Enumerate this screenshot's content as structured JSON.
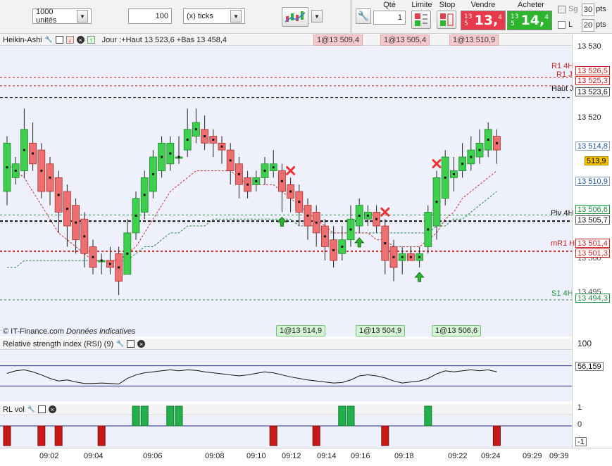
{
  "toolbar": {
    "units": "1000 unités",
    "ticks_value": "100",
    "ticks_unit": "(x) ticks",
    "qty_label": "Qté",
    "qty_value": "1",
    "limit_label": "Limite",
    "stop_label": "Stop",
    "sell_label": "Vendre",
    "buy_label": "Acheter",
    "sell_prefix": "13 5",
    "sell_big": "13,",
    "sell_sup": "4",
    "buy_prefix": "13 5",
    "buy_big": "14,",
    "buy_sup": "4",
    "sg_label": "Sg",
    "l_label": "L",
    "pts1": "30",
    "pts2": "20",
    "pts_label": "pts",
    "colors": {
      "sell": "#e8394a",
      "buy": "#2db52d"
    }
  },
  "main": {
    "title": "Heikin-Ashi",
    "info": "Jour :+Haut 13 523,6 +Bas 13 458,4",
    "top_tags": [
      "1@13 509,4",
      "1@13 505,4",
      "1@13 510,9"
    ],
    "bottom_tags": [
      "1@13 514,9",
      "1@13 504,9",
      "1@13 506,6"
    ],
    "credit": "© IT-Finance.com",
    "credit_note": "Données indicatives",
    "axis_ticks": [
      "13 530",
      "13 520",
      "13 500",
      "13 495"
    ],
    "levels": [
      {
        "name": "R1 4H",
        "price": "13 526,5",
        "color": "#cc2222"
      },
      {
        "name": "R1 J",
        "price": "13 525,3",
        "color": "#cc2222"
      },
      {
        "name": "Haut J",
        "price": "13 523,6",
        "color": "#111111"
      },
      {
        "name": "Piv 4H",
        "price": "13 506,6",
        "color": "#1f8f3f"
      },
      {
        "name": "",
        "price": "13 505,7",
        "color": "#111111"
      },
      {
        "name": "mR1 H",
        "price": "13 501,4",
        "color": "#cc2222"
      },
      {
        "name": "",
        "price": "13 501,3",
        "color": "#cc2222"
      },
      {
        "name": "S1 4H",
        "price": "13 494,3",
        "color": "#1f8f3f"
      }
    ],
    "right_prices": {
      "p1": "13 514,8",
      "p2": "513,9",
      "p3": "13 510,9"
    }
  },
  "rsi": {
    "title": "Relative strength index (RSI) (9)",
    "top": "100",
    "value": "56,159"
  },
  "rlvol": {
    "title": "RL vol",
    "ticks": [
      "1",
      "0",
      "-1"
    ]
  },
  "time_axis": [
    "09:02",
    "09:04",
    "09:06",
    "09:08",
    "09:10",
    "09:12",
    "09:14",
    "09:16",
    "09:18",
    "09:22",
    "09:24",
    "09:29",
    "09:39"
  ],
  "chart_data": {
    "type": "heikin-ashi",
    "ylim": [
      13489,
      13531
    ],
    "candles": [
      {
        "o": 13510,
        "c": 13517,
        "h": 13518,
        "l": 13508
      },
      {
        "o": 13512,
        "c": 13514,
        "h": 13515,
        "l": 13511
      },
      {
        "o": 13513,
        "c": 13519,
        "h": 13522,
        "l": 13512
      },
      {
        "o": 13517,
        "c": 13514,
        "h": 13520,
        "l": 13513
      },
      {
        "o": 13516,
        "c": 13510,
        "h": 13517,
        "l": 13509
      },
      {
        "o": 13514,
        "c": 13510,
        "h": 13515,
        "l": 13508
      },
      {
        "o": 13512,
        "c": 13507,
        "h": 13513,
        "l": 13504
      },
      {
        "o": 13510,
        "c": 13505,
        "h": 13511,
        "l": 13502
      },
      {
        "o": 13508,
        "c": 13503,
        "h": 13509,
        "l": 13501
      },
      {
        "o": 13506,
        "c": 13501,
        "h": 13507,
        "l": 13499
      },
      {
        "o": 13502,
        "c": 13499,
        "h": 13503,
        "l": 13498
      },
      {
        "o": 13500,
        "c": 13500,
        "h": 13501,
        "l": 13498
      },
      {
        "o": 13500,
        "c": 13499,
        "h": 13502,
        "l": 13498
      },
      {
        "o": 13501,
        "c": 13497,
        "h": 13502,
        "l": 13495
      },
      {
        "o": 13498,
        "c": 13504,
        "h": 13506,
        "l": 13498
      },
      {
        "o": 13504,
        "c": 13509,
        "h": 13510,
        "l": 13503
      },
      {
        "o": 13507,
        "c": 13512,
        "h": 13513,
        "l": 13506
      },
      {
        "o": 13510,
        "c": 13515,
        "h": 13516,
        "l": 13509
      },
      {
        "o": 13513,
        "c": 13517,
        "h": 13518,
        "l": 13512
      },
      {
        "o": 13514,
        "c": 13517,
        "h": 13518,
        "l": 13513
      },
      {
        "o": 13515,
        "c": 13515,
        "h": 13518,
        "l": 13514
      },
      {
        "o": 13516,
        "c": 13519,
        "h": 13522,
        "l": 13515
      },
      {
        "o": 13518,
        "c": 13520,
        "h": 13522,
        "l": 13517
      },
      {
        "o": 13519,
        "c": 13517,
        "h": 13521,
        "l": 13516
      },
      {
        "o": 13518,
        "c": 13517,
        "h": 13519,
        "l": 13515
      },
      {
        "o": 13517,
        "c": 13516,
        "h": 13518,
        "l": 13514
      },
      {
        "o": 13516,
        "c": 13513,
        "h": 13517,
        "l": 13511
      },
      {
        "o": 13514,
        "c": 13511,
        "h": 13515,
        "l": 13509
      },
      {
        "o": 13512,
        "c": 13510,
        "h": 13513,
        "l": 13509
      },
      {
        "o": 13511,
        "c": 13512,
        "h": 13513,
        "l": 13510
      },
      {
        "o": 13512,
        "c": 13514,
        "h": 13515,
        "l": 13511
      },
      {
        "o": 13513,
        "c": 13514,
        "h": 13516,
        "l": 13512
      },
      {
        "o": 13513,
        "c": 13510,
        "h": 13514,
        "l": 13507
      },
      {
        "o": 13511,
        "c": 13509,
        "h": 13512,
        "l": 13507
      },
      {
        "o": 13510,
        "c": 13507,
        "h": 13511,
        "l": 13505
      },
      {
        "o": 13508,
        "c": 13505,
        "h": 13509,
        "l": 13503
      },
      {
        "o": 13507,
        "c": 13504,
        "h": 13508,
        "l": 13502
      },
      {
        "o": 13505,
        "c": 13502,
        "h": 13506,
        "l": 13500
      },
      {
        "o": 13503,
        "c": 13500,
        "h": 13505,
        "l": 13499
      },
      {
        "o": 13501,
        "c": 13503,
        "h": 13505,
        "l": 13500
      },
      {
        "o": 13503,
        "c": 13506,
        "h": 13508,
        "l": 13502
      },
      {
        "o": 13505,
        "c": 13508,
        "h": 13509,
        "l": 13504
      },
      {
        "o": 13506,
        "c": 13507,
        "h": 13508,
        "l": 13505
      },
      {
        "o": 13507,
        "c": 13505,
        "h": 13508,
        "l": 13504
      },
      {
        "o": 13505,
        "c": 13500,
        "h": 13506,
        "l": 13498
      },
      {
        "o": 13502,
        "c": 13499,
        "h": 13503,
        "l": 13497
      },
      {
        "o": 13500,
        "c": 13501,
        "h": 13502,
        "l": 13498
      },
      {
        "o": 13501,
        "c": 13500,
        "h": 13502,
        "l": 13500
      },
      {
        "o": 13500,
        "c": 13501,
        "h": 13502,
        "l": 13499
      },
      {
        "o": 13502,
        "c": 13507,
        "h": 13508,
        "l": 13501
      },
      {
        "o": 13505,
        "c": 13512,
        "h": 13513,
        "l": 13503
      },
      {
        "o": 13509,
        "c": 13515,
        "h": 13516,
        "l": 13508
      },
      {
        "o": 13512,
        "c": 13513,
        "h": 13515,
        "l": 13510
      },
      {
        "o": 13513,
        "c": 13515,
        "h": 13517,
        "l": 13512
      },
      {
        "o": 13514,
        "c": 13516,
        "h": 13518,
        "l": 13513
      },
      {
        "o": 13515,
        "c": 13517,
        "h": 13519,
        "l": 13514
      },
      {
        "o": 13516,
        "c": 13519,
        "h": 13520,
        "l": 13515
      },
      {
        "o": 13518,
        "c": 13516,
        "h": 13519,
        "l": 13514
      }
    ],
    "ma_red": [
      13514,
      13513,
      13512,
      13510,
      13508,
      13506,
      13504,
      13503,
      13502,
      13501,
      13500,
      13500,
      13500,
      13500,
      13501,
      13502,
      13504,
      13506,
      13508,
      13510,
      13511,
      13512,
      13513,
      13513,
      13513,
      13513,
      13513,
      13512,
      13511,
      13511,
      13511,
      13511,
      13510,
      13509,
      13508,
      13507,
      13506,
      13505,
      13504,
      13504,
      13504,
      13504,
      13504,
      13503,
      13503,
      13502,
      13502,
      13502,
      13502,
      13503,
      13504,
      13506,
      13507,
      13509,
      13510,
      13511,
      13512,
      13513
    ],
    "ma_green": [
      13499,
      13499,
      13500,
      13500,
      13500,
      13500,
      13500,
      13500,
      13500,
      13500,
      13500,
      13500,
      13500,
      13500,
      13500,
      13501,
      13502,
      13502,
      13503,
      13504,
      13504,
      13505,
      13505,
      13505,
      13506,
      13506,
      13506,
      13506,
      13506,
      13506,
      13506,
      13506,
      13506,
      13506,
      13505,
      13505,
      13505,
      13504,
      13504,
      13504,
      13504,
      13504,
      13504,
      13504,
      13504,
      13504,
      13504,
      13504,
      13504,
      13504,
      13505,
      13505,
      13506,
      13506,
      13507,
      13508,
      13509,
      13510
    ],
    "markers": [
      {
        "i": 32,
        "type": "up"
      },
      {
        "i": 33,
        "type": "x"
      },
      {
        "i": 41,
        "type": "up"
      },
      {
        "i": 44,
        "type": "x"
      },
      {
        "i": 48,
        "type": "up"
      },
      {
        "i": 50,
        "type": "x"
      }
    ],
    "rsi_series": [
      55,
      60,
      62,
      58,
      52,
      45,
      40,
      42,
      38,
      35,
      35,
      36,
      35,
      34,
      45,
      52,
      56,
      58,
      60,
      62,
      60,
      62,
      61,
      58,
      56,
      54,
      52,
      50,
      52,
      55,
      58,
      56,
      52,
      48,
      45,
      42,
      40,
      38,
      36,
      37,
      42,
      50,
      52,
      50,
      46,
      40,
      36,
      38,
      40,
      45,
      54,
      60,
      58,
      60,
      62,
      60,
      62,
      58
    ],
    "rsi_ylim": [
      0,
      100
    ],
    "rsi_levels": [
      70,
      30
    ],
    "rlvol": [
      -1,
      0,
      0,
      0,
      -1,
      0,
      -1,
      0,
      0,
      0,
      0,
      -1,
      0,
      0,
      0,
      1,
      1,
      0,
      0,
      1,
      1,
      0,
      0,
      0,
      0,
      0,
      0,
      0,
      0,
      0,
      0,
      -1,
      0,
      0,
      0,
      0,
      -1,
      0,
      0,
      1,
      1,
      0,
      0,
      0,
      -1,
      0,
      0,
      0,
      0,
      1,
      0,
      0,
      0,
      0,
      0,
      0,
      0,
      -1
    ]
  }
}
